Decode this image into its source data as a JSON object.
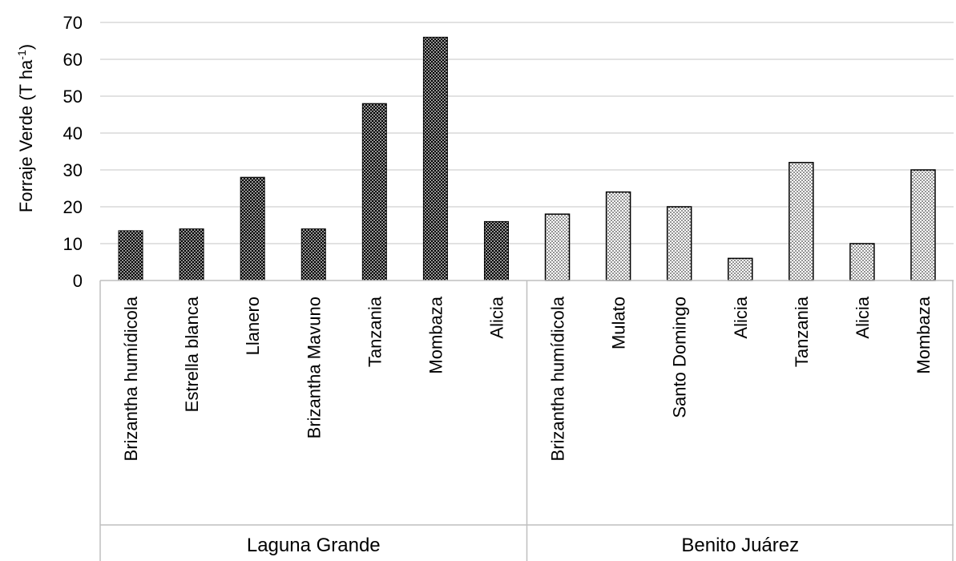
{
  "chart_data": {
    "type": "bar",
    "title": "",
    "ylabel": "Forraje Verde (T ha",
    "ylabel_sup": "-1",
    "ylabel_end": ")",
    "ylim": [
      0,
      70
    ],
    "yticks": [
      0,
      10,
      20,
      30,
      40,
      50,
      60,
      70
    ],
    "grid": true,
    "legend": "none",
    "groups": [
      {
        "label": "Laguna Grande",
        "pattern": "dark-dots",
        "categories": [
          "Brizantha humídicola",
          "Estrella blanca",
          "Llanero",
          "Brizantha Mavuno",
          "Tanzania",
          "Mombaza",
          "Alicia"
        ],
        "values": [
          13.5,
          14,
          28,
          14,
          48,
          66,
          16
        ]
      },
      {
        "label": "Benito Juárez",
        "pattern": "light-dots",
        "categories": [
          "Brizantha humídicola",
          "Mulato",
          "Santo Domingo",
          "Alicia",
          "Tanzania",
          "Alicia",
          "Mombaza"
        ],
        "values": [
          18,
          24,
          20,
          6,
          32,
          10,
          30
        ]
      }
    ],
    "colors": {
      "gridline": "#d9d9d9",
      "axis": "#bfbfbf",
      "bar_dark_fill": "#000000",
      "bar_dark_dot": "#ffffff",
      "bar_light_fill": "#ffffff",
      "bar_light_dot": "#000000",
      "bar_outline": "#000000"
    }
  }
}
